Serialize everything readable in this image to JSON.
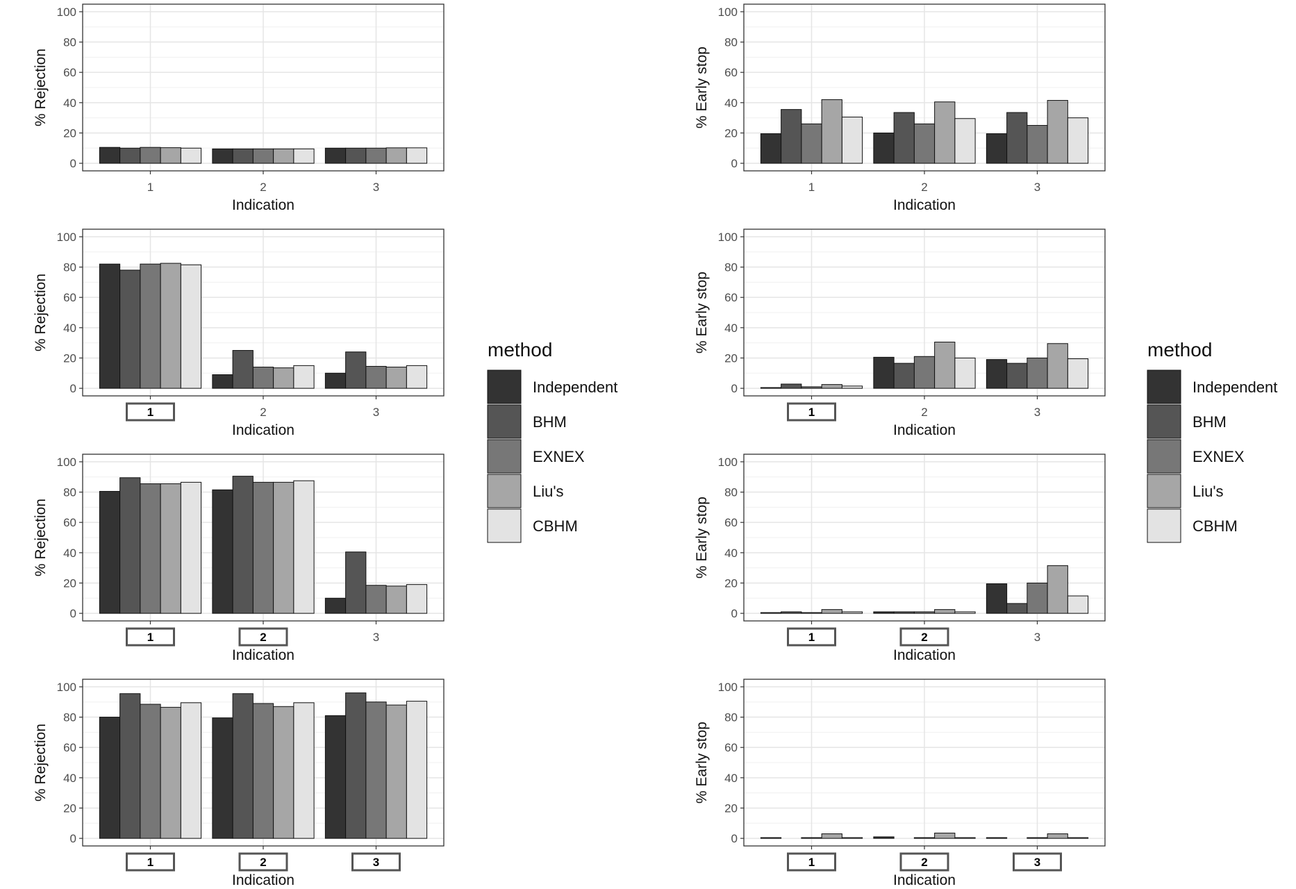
{
  "chart_data": [
    {
      "type": "bar",
      "ylabel": "% Rejection",
      "xlabel": "Indication",
      "categories": [
        "1",
        "2",
        "3"
      ],
      "boxed": [
        false,
        false,
        false
      ],
      "ylim": [
        -5,
        105
      ],
      "yticks": [
        0,
        20,
        40,
        60,
        80,
        100
      ],
      "minor_yticks": [
        10,
        30,
        50,
        70,
        90
      ],
      "grid": true,
      "legend": true,
      "legend_title": "method",
      "series": [
        {
          "name": "Independent",
          "color": "#333333",
          "values": [
            10.5,
            9.5,
            10
          ]
        },
        {
          "name": "BHM",
          "color": "#555555",
          "values": [
            10,
            9.5,
            10
          ]
        },
        {
          "name": "EXNEX",
          "color": "#777777",
          "values": [
            10.5,
            9.5,
            10
          ]
        },
        {
          "name": "Liu's",
          "color": "#a6a6a6",
          "values": [
            10.3,
            9.5,
            10.2
          ]
        },
        {
          "name": "CBHM",
          "color": "#e3e3e3",
          "values": [
            10,
            9.5,
            10.2
          ]
        }
      ]
    },
    {
      "type": "bar",
      "ylabel": "% Rejection",
      "xlabel": "Indication",
      "categories": [
        "1",
        "2",
        "3"
      ],
      "boxed": [
        true,
        false,
        false
      ],
      "ylim": [
        -5,
        105
      ],
      "yticks": [
        0,
        20,
        40,
        60,
        80,
        100
      ],
      "minor_yticks": [
        10,
        30,
        50,
        70,
        90
      ],
      "grid": true,
      "series": [
        {
          "name": "Independent",
          "color": "#333333",
          "values": [
            82,
            9,
            10
          ]
        },
        {
          "name": "BHM",
          "color": "#555555",
          "values": [
            78,
            25,
            24
          ]
        },
        {
          "name": "EXNEX",
          "color": "#777777",
          "values": [
            82,
            14,
            14.5
          ]
        },
        {
          "name": "Liu's",
          "color": "#a6a6a6",
          "values": [
            82.5,
            13.5,
            14
          ]
        },
        {
          "name": "CBHM",
          "color": "#e3e3e3",
          "values": [
            81.5,
            15,
            15
          ]
        }
      ]
    },
    {
      "type": "bar",
      "ylabel": "% Rejection",
      "xlabel": "Indication",
      "categories": [
        "1",
        "2",
        "3"
      ],
      "boxed": [
        true,
        true,
        false
      ],
      "ylim": [
        -5,
        105
      ],
      "yticks": [
        0,
        20,
        40,
        60,
        80,
        100
      ],
      "minor_yticks": [
        10,
        30,
        50,
        70,
        90
      ],
      "grid": true,
      "series": [
        {
          "name": "Independent",
          "color": "#333333",
          "values": [
            80.5,
            81.5,
            10
          ]
        },
        {
          "name": "BHM",
          "color": "#555555",
          "values": [
            89.5,
            90.5,
            40.5
          ]
        },
        {
          "name": "EXNEX",
          "color": "#777777",
          "values": [
            85.5,
            86.5,
            18.5
          ]
        },
        {
          "name": "Liu's",
          "color": "#a6a6a6",
          "values": [
            85.5,
            86.5,
            18
          ]
        },
        {
          "name": "CBHM",
          "color": "#e3e3e3",
          "values": [
            86.5,
            87.5,
            19
          ]
        }
      ]
    },
    {
      "type": "bar",
      "ylabel": "% Rejection",
      "xlabel": "Indication",
      "categories": [
        "1",
        "2",
        "3"
      ],
      "boxed": [
        true,
        true,
        true
      ],
      "ylim": [
        -5,
        105
      ],
      "yticks": [
        0,
        20,
        40,
        60,
        80,
        100
      ],
      "minor_yticks": [
        10,
        30,
        50,
        70,
        90
      ],
      "grid": true,
      "series": [
        {
          "name": "Independent",
          "color": "#333333",
          "values": [
            80,
            79.5,
            81
          ]
        },
        {
          "name": "BHM",
          "color": "#555555",
          "values": [
            95.5,
            95.5,
            96
          ]
        },
        {
          "name": "EXNEX",
          "color": "#777777",
          "values": [
            88.5,
            89,
            90
          ]
        },
        {
          "name": "Liu's",
          "color": "#a6a6a6",
          "values": [
            86.5,
            87,
            88
          ]
        },
        {
          "name": "CBHM",
          "color": "#e3e3e3",
          "values": [
            89.5,
            89.5,
            90.5
          ]
        }
      ]
    },
    {
      "type": "bar",
      "ylabel": "% Early stop",
      "xlabel": "Indication",
      "categories": [
        "1",
        "2",
        "3"
      ],
      "boxed": [
        false,
        false,
        false
      ],
      "ylim": [
        -5,
        105
      ],
      "yticks": [
        0,
        20,
        40,
        60,
        80,
        100
      ],
      "minor_yticks": [
        10,
        30,
        50,
        70,
        90
      ],
      "grid": true,
      "legend": true,
      "legend_title": "method",
      "series": [
        {
          "name": "Independent",
          "color": "#333333",
          "values": [
            19.5,
            20,
            19.5
          ]
        },
        {
          "name": "BHM",
          "color": "#555555",
          "values": [
            35.5,
            33.5,
            33.5
          ]
        },
        {
          "name": "EXNEX",
          "color": "#777777",
          "values": [
            26,
            26,
            25
          ]
        },
        {
          "name": "Liu's",
          "color": "#a6a6a6",
          "values": [
            42,
            40.5,
            41.5
          ]
        },
        {
          "name": "CBHM",
          "color": "#e3e3e3",
          "values": [
            30.5,
            29.5,
            30
          ]
        }
      ]
    },
    {
      "type": "bar",
      "ylabel": "% Early stop",
      "xlabel": "Indication",
      "categories": [
        "1",
        "2",
        "3"
      ],
      "boxed": [
        true,
        false,
        false
      ],
      "ylim": [
        -5,
        105
      ],
      "yticks": [
        0,
        20,
        40,
        60,
        80,
        100
      ],
      "minor_yticks": [
        10,
        30,
        50,
        70,
        90
      ],
      "grid": true,
      "series": [
        {
          "name": "Independent",
          "color": "#333333",
          "values": [
            0.5,
            20.5,
            19
          ]
        },
        {
          "name": "BHM",
          "color": "#555555",
          "values": [
            2.8,
            16.5,
            16.5
          ]
        },
        {
          "name": "EXNEX",
          "color": "#777777",
          "values": [
            1,
            21,
            20
          ]
        },
        {
          "name": "Liu's",
          "color": "#a6a6a6",
          "values": [
            2.5,
            30.5,
            29.5
          ]
        },
        {
          "name": "CBHM",
          "color": "#e3e3e3",
          "values": [
            1.5,
            20,
            19.5
          ]
        }
      ]
    },
    {
      "type": "bar",
      "ylabel": "% Early stop",
      "xlabel": "Indication",
      "categories": [
        "1",
        "2",
        "3"
      ],
      "boxed": [
        true,
        true,
        false
      ],
      "ylim": [
        -5,
        105
      ],
      "yticks": [
        0,
        20,
        40,
        60,
        80,
        100
      ],
      "minor_yticks": [
        10,
        30,
        50,
        70,
        90
      ],
      "grid": true,
      "series": [
        {
          "name": "Independent",
          "color": "#333333",
          "values": [
            0.5,
            1,
            19.5
          ]
        },
        {
          "name": "BHM",
          "color": "#555555",
          "values": [
            1,
            1,
            6.5
          ]
        },
        {
          "name": "EXNEX",
          "color": "#777777",
          "values": [
            0.5,
            1,
            20
          ]
        },
        {
          "name": "Liu's",
          "color": "#a6a6a6",
          "values": [
            2.5,
            2.5,
            31.5
          ]
        },
        {
          "name": "CBHM",
          "color": "#e3e3e3",
          "values": [
            1,
            1,
            11.5
          ]
        }
      ]
    },
    {
      "type": "bar",
      "ylabel": "% Early stop",
      "xlabel": "Indication",
      "categories": [
        "1",
        "2",
        "3"
      ],
      "boxed": [
        true,
        true,
        true
      ],
      "ylim": [
        -5,
        105
      ],
      "yticks": [
        0,
        20,
        40,
        60,
        80,
        100
      ],
      "minor_yticks": [
        10,
        30,
        50,
        70,
        90
      ],
      "grid": true,
      "series": [
        {
          "name": "Independent",
          "color": "#333333",
          "values": [
            0.5,
            1,
            0.5
          ]
        },
        {
          "name": "BHM",
          "color": "#555555",
          "values": [
            0,
            0,
            0
          ]
        },
        {
          "name": "EXNEX",
          "color": "#777777",
          "values": [
            0.5,
            0.5,
            0.5
          ]
        },
        {
          "name": "Liu's",
          "color": "#a6a6a6",
          "values": [
            3,
            3.5,
            3
          ]
        },
        {
          "name": "CBHM",
          "color": "#e3e3e3",
          "values": [
            0.5,
            0.5,
            0.5
          ]
        }
      ]
    }
  ]
}
